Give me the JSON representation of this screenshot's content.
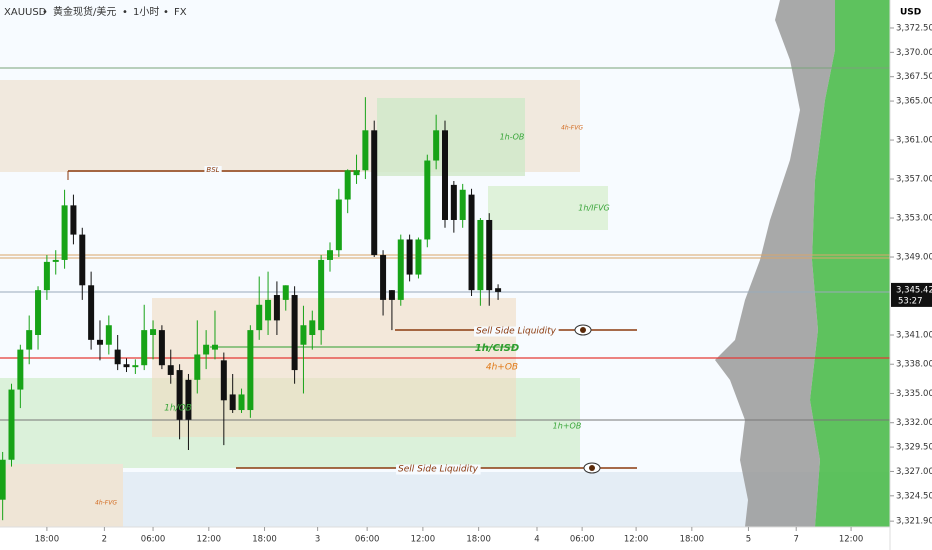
{
  "chart_data": {
    "type": "candlestick",
    "symbol": "XAUUSD",
    "name": "黄金现货/美元",
    "interval": "1小时",
    "exchange": "FX",
    "currency": "USD",
    "up_color": "#17a317",
    "down_color": "#111111",
    "x": [
      -5,
      -4,
      -3,
      -2,
      -1,
      0,
      1,
      2,
      3,
      4,
      5,
      6,
      7,
      8,
      9,
      10,
      11,
      12,
      13,
      14,
      15,
      16,
      17,
      18,
      19,
      20,
      21,
      22,
      23,
      24,
      25,
      26,
      27,
      28,
      29,
      30,
      31,
      32,
      33,
      34,
      35,
      36,
      37,
      38,
      39,
      40,
      41,
      42,
      43,
      44,
      45,
      46,
      47,
      48,
      49,
      50,
      51
    ],
    "open": [
      3324.1,
      3328.2,
      3335.4,
      3339.5,
      3341.0,
      3345.6,
      3348.5,
      3348.7,
      3354.3,
      3351.3,
      3346.1,
      3340.5,
      3340.0,
      3339.5,
      3338.0,
      3337.7,
      3337.9,
      3341.0,
      3341.5,
      3337.9,
      3337.4,
      3336.4,
      3336.4,
      3339.0,
      3339.5,
      3338.4,
      3334.9,
      3333.3,
      3333.3,
      3341.5,
      3342.5,
      3345.1,
      3344.6,
      3345.1,
      3340.0,
      3341.0,
      3341.5,
      3348.7,
      3349.7,
      3354.9,
      3357.4,
      3357.9,
      3362.0,
      3349.2,
      3345.6,
      3344.6,
      3350.8,
      3347.2,
      3350.8,
      3358.9,
      3362.0,
      3356.4,
      3352.8,
      3355.4,
      3345.6,
      3352.8,
      3345.8
    ],
    "high": [
      3329.0,
      3336.0,
      3340.0,
      3343.0,
      3346.0,
      3349.2,
      3349.7,
      3355.9,
      3355.4,
      3352.0,
      3347.5,
      3342.5,
      3343.0,
      3341.0,
      3338.6,
      3338.5,
      3344.1,
      3342.5,
      3342.0,
      3339.5,
      3338.0,
      3337.0,
      3342.5,
      3341.5,
      3343.5,
      3339.2,
      3337.0,
      3335.5,
      3342.0,
      3347.0,
      3347.5,
      3346.5,
      3346.1,
      3346.0,
      3344.0,
      3343.5,
      3349.2,
      3350.5,
      3356.0,
      3358.0,
      3359.5,
      3365.4,
      3363.0,
      3349.7,
      3345.6,
      3351.3,
      3351.3,
      3351.0,
      3359.5,
      3363.6,
      3363.0,
      3356.8,
      3356.5,
      3356.0,
      3353.0,
      3353.5,
      3346.2
    ],
    "low": [
      3322.0,
      3327.5,
      3333.5,
      3338.0,
      3339.5,
      3344.6,
      3347.2,
      3347.8,
      3350.3,
      3344.6,
      3339.5,
      3338.4,
      3339.0,
      3337.4,
      3337.2,
      3337.0,
      3337.4,
      3338.5,
      3337.5,
      3336.0,
      3330.3,
      3329.2,
      3335.0,
      3337.5,
      3338.5,
      3329.7,
      3333.0,
      3333.0,
      3332.5,
      3340.5,
      3341.0,
      3341.0,
      3343.5,
      3336.0,
      3335.0,
      3339.5,
      3340.0,
      3347.5,
      3349.0,
      3353.5,
      3356.5,
      3357.0,
      3349.0,
      3343.0,
      3341.5,
      3344.0,
      3346.5,
      3346.8,
      3350.0,
      3358.0,
      3352.0,
      3351.5,
      3352.0,
      3345.0,
      3344.0,
      3344.0,
      3344.6
    ],
    "close": [
      3328.2,
      3335.4,
      3339.5,
      3341.5,
      3345.6,
      3348.5,
      3348.7,
      3354.3,
      3351.3,
      3346.1,
      3340.5,
      3340.0,
      3342.0,
      3338.0,
      3337.7,
      3337.9,
      3341.5,
      3341.6,
      3337.9,
      3336.9,
      3332.3,
      3332.3,
      3339.0,
      3340.0,
      3340.0,
      3334.3,
      3333.3,
      3334.9,
      3341.5,
      3344.1,
      3344.6,
      3342.5,
      3346.1,
      3337.4,
      3342.0,
      3342.5,
      3348.7,
      3349.7,
      3354.9,
      3357.9,
      3357.9,
      3362.0,
      3349.2,
      3344.6,
      3344.6,
      3350.8,
      3347.2,
      3350.8,
      3358.9,
      3362.0,
      3352.8,
      3352.8,
      3355.9,
      3345.6,
      3352.8,
      3345.6,
      3345.42
    ],
    "xlim": [
      -5.3,
      95.3
    ],
    "xticks": [
      {
        "value": 0,
        "label": "18:00"
      },
      {
        "value": 6.5,
        "label": "2"
      },
      {
        "value": 12,
        "label": "06:00"
      },
      {
        "value": 18.3,
        "label": "12:00"
      },
      {
        "value": 24.6,
        "label": "18:00"
      },
      {
        "value": 30.6,
        "label": "3"
      },
      {
        "value": 36.2,
        "label": "06:00"
      },
      {
        "value": 42.5,
        "label": "12:00"
      },
      {
        "value": 48.8,
        "label": "18:00"
      },
      {
        "value": 55.4,
        "label": "4"
      },
      {
        "value": 60.5,
        "label": "06:00"
      },
      {
        "value": 66.6,
        "label": "12:00"
      },
      {
        "value": 72.9,
        "label": "18:00"
      },
      {
        "value": 79.3,
        "label": "5"
      },
      {
        "value": 84.7,
        "label": "7"
      },
      {
        "value": 90.9,
        "label": "12:00"
      }
    ],
    "ylim": [
      3321.3,
      3375.37
    ],
    "yticks": [
      {
        "value": 3372.5,
        "label": "3,372.50"
      },
      {
        "value": 3370,
        "label": "3,370.00"
      },
      {
        "value": 3367.5,
        "label": "3,367.50"
      },
      {
        "value": 3365,
        "label": "3,365.00"
      },
      {
        "value": 3361,
        "label": "3,361.00"
      },
      {
        "value": 3357,
        "label": "3,357.00"
      },
      {
        "value": 3353,
        "label": "3,353.00"
      },
      {
        "value": 3349,
        "label": "3,349.00"
      },
      {
        "value": 3341,
        "label": "3,341.00"
      },
      {
        "value": 3338,
        "label": "3,338.00"
      },
      {
        "value": 3335,
        "label": "3,335.00"
      },
      {
        "value": 3332,
        "label": "3,332.00"
      },
      {
        "value": 3329.5,
        "label": "3,329.50"
      },
      {
        "value": 3327,
        "label": "3,327.00"
      },
      {
        "value": 3324.5,
        "label": "3,324.50"
      },
      {
        "value": 3321.9,
        "label": "3,321.90"
      }
    ],
    "last_price": {
      "value": 3345.42,
      "label": "3,345.42"
    },
    "countdown": "53:27",
    "annotations": [
      {
        "text": "BSL",
        "color": "#8b3a0e"
      },
      {
        "text": "1h-OB",
        "color": "#3aa53a"
      },
      {
        "text": "4h-FVG",
        "color": "#d2691e"
      },
      {
        "text": "1h/IFVG",
        "color": "#3aa53a"
      },
      {
        "text": "Sell Side Liquidity",
        "color": "#8b3a0e"
      },
      {
        "text": "1h/CISD",
        "color": "#2e9e2e"
      },
      {
        "text": "4h+OB",
        "color": "#e07b1a"
      },
      {
        "text": "1h/OB",
        "color": "#3aa53a"
      },
      {
        "text": "1h+OB",
        "color": "#3aa53a"
      },
      {
        "text": "Sell Side Liquidity",
        "color": "#8b3a0e"
      },
      {
        "text": "4h-FVG",
        "color": "#d2691e"
      }
    ]
  }
}
